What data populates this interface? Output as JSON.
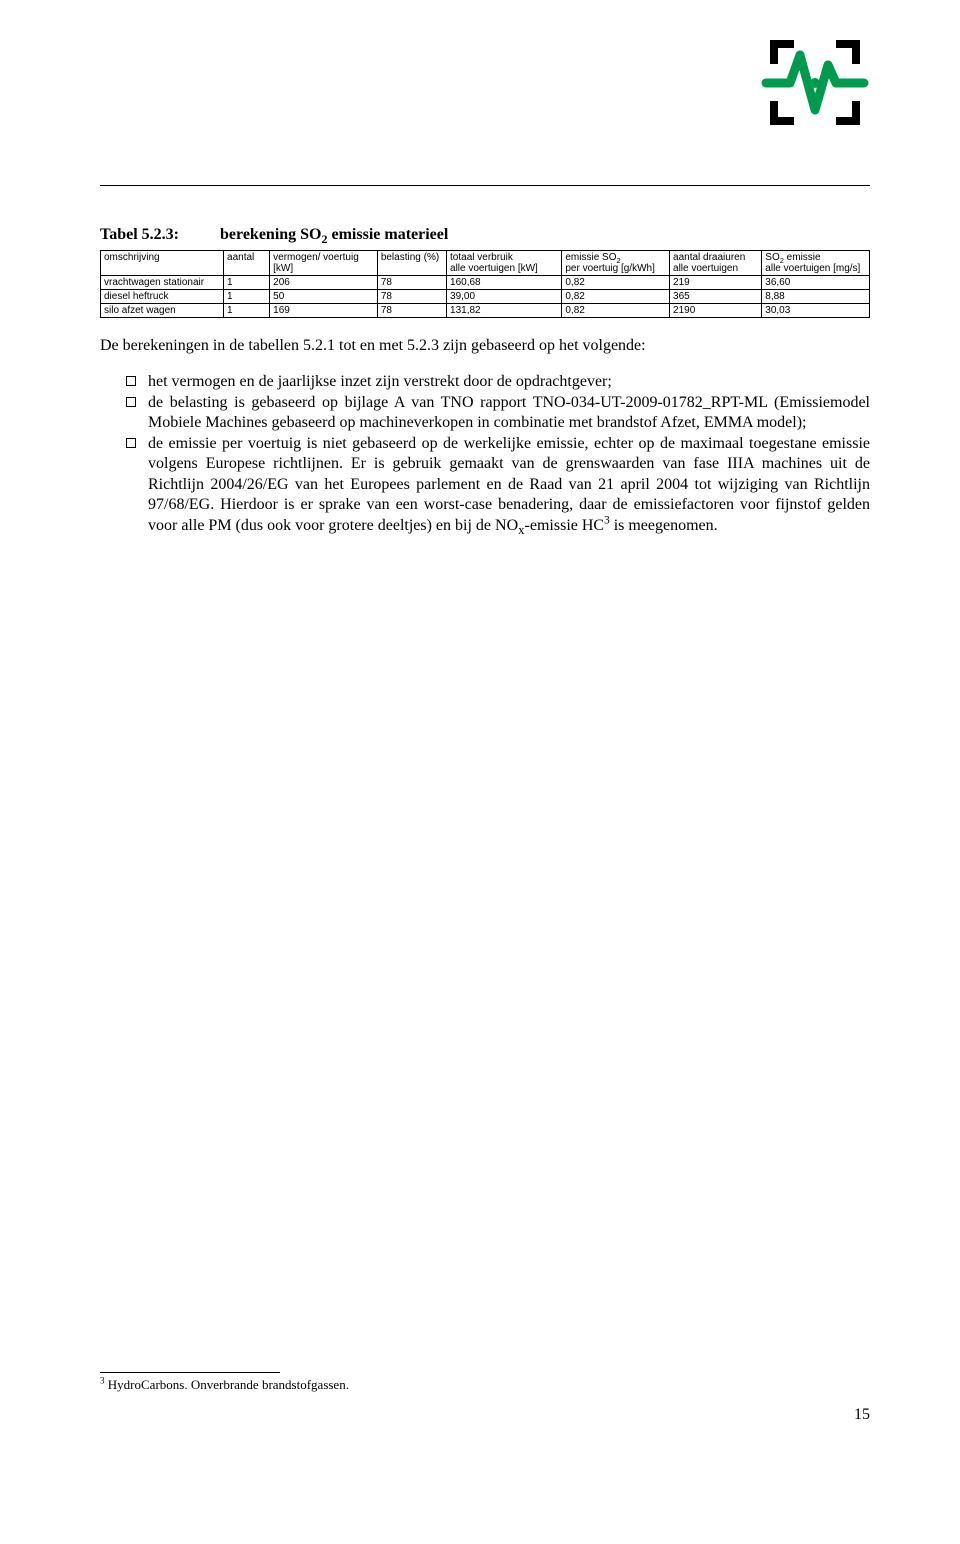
{
  "logo": {
    "bracket_color": "#000000",
    "wave_color": "#009a4e",
    "dot_color": "#009a4e"
  },
  "table": {
    "caption_label": "Tabel 5.2.3:",
    "caption_title_pre": "berekening SO",
    "caption_title_sub": "2",
    "caption_title_post": " emissie materieel",
    "columns": [
      {
        "line1": "omschrijving",
        "line2": ""
      },
      {
        "line1": "aantal",
        "line2": ""
      },
      {
        "line1": "vermogen/ voertuig",
        "line2": "[kW]"
      },
      {
        "line1": "belasting (%)",
        "line2": ""
      },
      {
        "line1": "totaal verbruik",
        "line2": "alle voertuigen [kW]"
      },
      {
        "line1_pre": "emissie SO",
        "line1_sub": "2",
        "line2": "per voertuig [g/kWh]"
      },
      {
        "line1": "aantal draaiuren",
        "line2": "alle voertuigen"
      },
      {
        "line1_pre": "SO",
        "line1_sub": "2",
        "line1_post": " emissie",
        "line2": "alle voertuigen [mg/s]"
      }
    ],
    "rows": [
      [
        "vrachtwagen stationair",
        "1",
        "206",
        "78",
        "160,68",
        "0,82",
        "219",
        "36,60"
      ],
      [
        "diesel heftruck",
        "1",
        "50",
        "78",
        "39,00",
        "0,82",
        "365",
        "8,88"
      ],
      [
        "silo afzet wagen",
        "1",
        "169",
        "78",
        "131,82",
        "0,82",
        "2190",
        "30,03"
      ]
    ],
    "col_widths": [
      "16%",
      "6%",
      "14%",
      "9%",
      "15%",
      "14%",
      "12%",
      "14%"
    ]
  },
  "intro": "De berekeningen in de tabellen 5.2.1 tot en met 5.2.3 zijn gebaseerd op het volgende:",
  "bullets": {
    "b1": "het vermogen en de jaarlijkse inzet zijn verstrekt door de opdrachtgever;",
    "b2": "de belasting is gebaseerd op bijlage A van TNO rapport TNO-034-UT-2009-01782_RPT-ML (Emissiemodel Mobiele Machines gebaseerd op machineverkopen in combinatie met brandstof Afzet, EMMA model);",
    "b3_pre": "de emissie per voertuig is niet gebaseerd op de werkelijke emissie, echter op de maximaal toegestane emissie volgens Europese richtlijnen. Er is gebruik gemaakt van de grenswaarden van fase IIIA machines uit de Richtlijn 2004/26/EG van het Europees parlement en de Raad van 21 april 2004 tot wijziging van Richtlijn 97/68/EG. Hierdoor is er sprake van een worst-case benadering, daar de emissiefactoren voor fijnstof gelden voor alle PM (dus ook voor grotere deeltjes) en bij de NO",
    "b3_sub": "x",
    "b3_mid": "-emissie HC",
    "b3_sup": "3",
    "b3_post": " is meegenomen."
  },
  "footnote": {
    "marker": "3",
    "text": " HydroCarbons. Onverbrande brandstofgassen."
  },
  "page_number": "15"
}
